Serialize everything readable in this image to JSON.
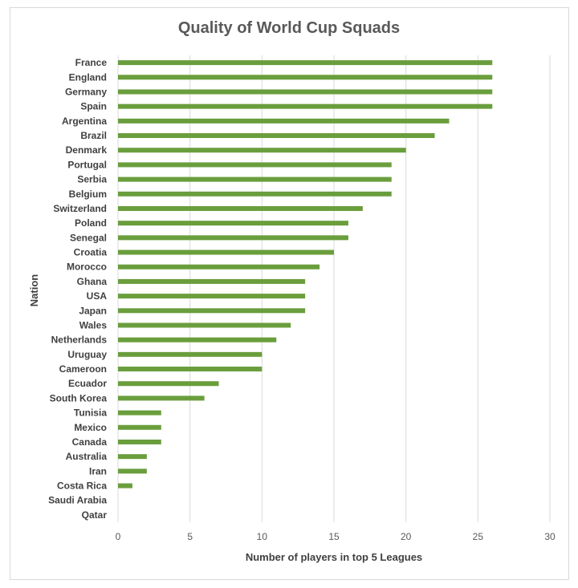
{
  "chart_data": {
    "type": "bar",
    "orientation": "horizontal",
    "title": "Quality of World Cup Squads",
    "xlabel": "Number of players in top 5 Leagues",
    "ylabel": "Nation",
    "xlim": [
      0,
      30
    ],
    "xticks": [
      0,
      5,
      10,
      15,
      20,
      25,
      30
    ],
    "grid": true,
    "legend": "none",
    "bar_color": "#6a9e3d",
    "categories": [
      "France",
      "England",
      "Germany",
      "Spain",
      "Argentina",
      "Brazil",
      "Denmark",
      "Portugal",
      "Serbia",
      "Belgium",
      "Switzerland",
      "Poland",
      "Senegal",
      "Croatia",
      "Morocco",
      "Ghana",
      "USA",
      "Japan",
      "Wales",
      "Netherlands",
      "Uruguay",
      "Cameroon",
      "Ecuador",
      "South Korea",
      "Tunisia",
      "Mexico",
      "Canada",
      "Australia",
      "Iran",
      "Costa Rica",
      "Saudi Arabia",
      "Qatar"
    ],
    "values": [
      26,
      26,
      26,
      26,
      23,
      22,
      20,
      19,
      19,
      19,
      17,
      16,
      16,
      15,
      14,
      13,
      13,
      13,
      12,
      11,
      10,
      10,
      7,
      6,
      3,
      3,
      3,
      2,
      2,
      1,
      0,
      0
    ]
  }
}
